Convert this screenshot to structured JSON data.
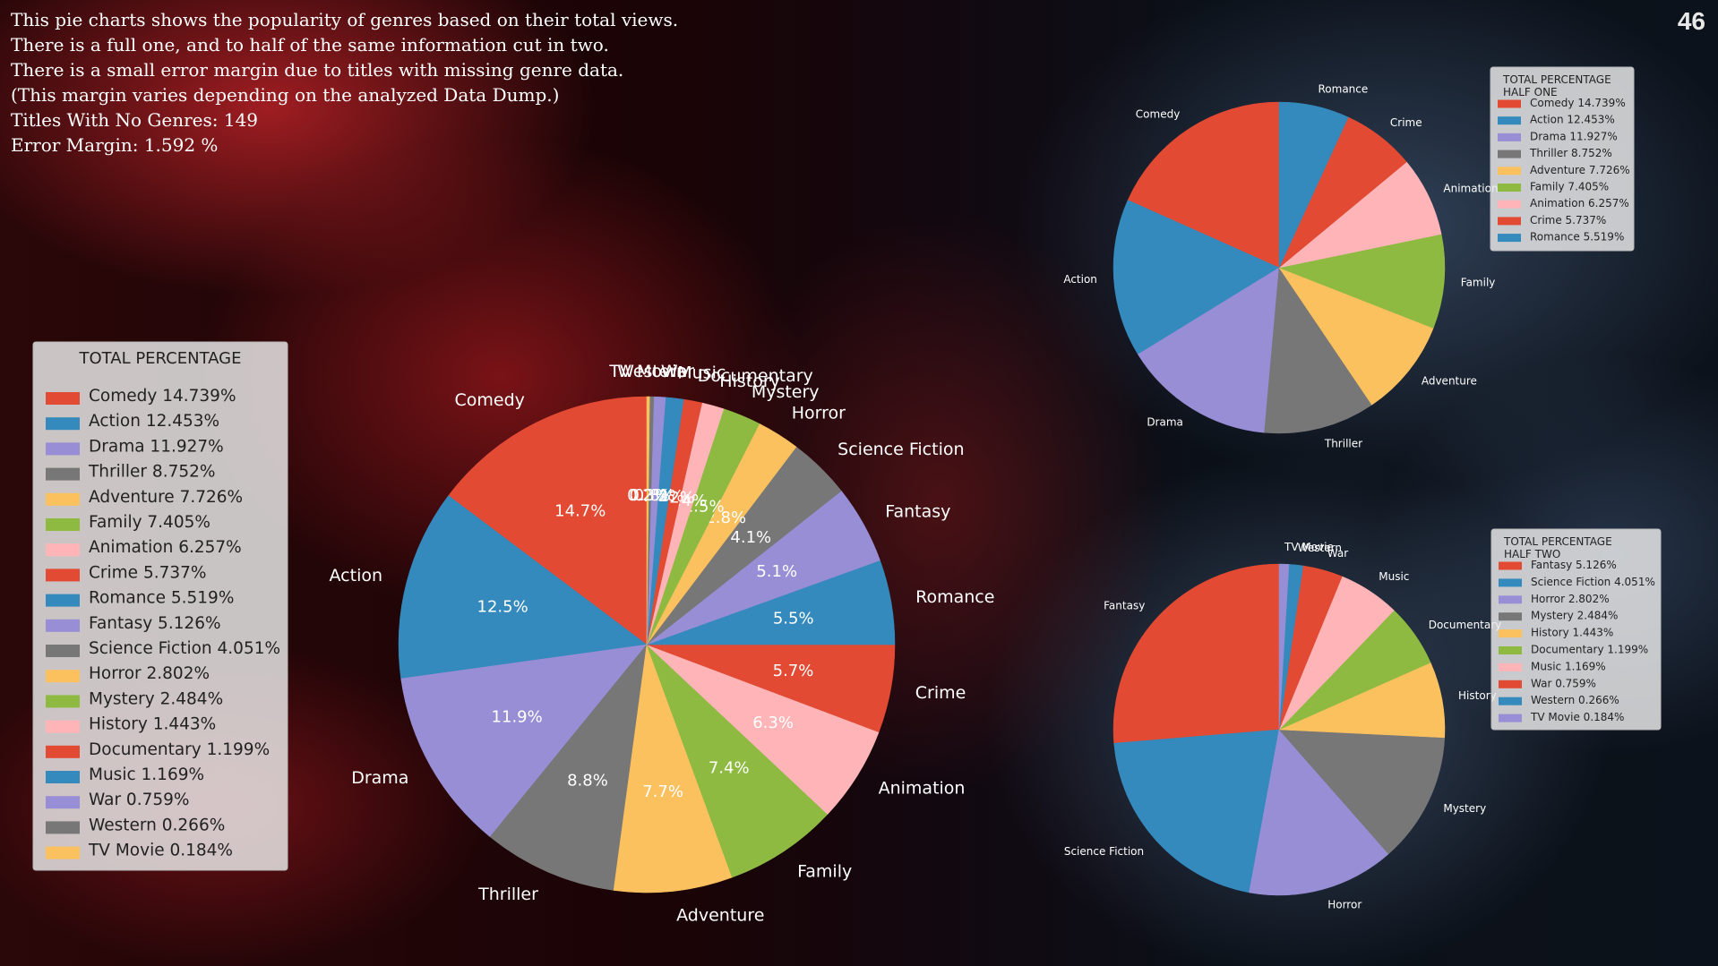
{
  "description_lines": [
    "This pie charts shows the popularity of genres based on their total views.",
    "There is a full one, and to half of the same information cut in two.",
    "There is a small error margin due to titles with missing genre data.",
    "(This margin varies depending on the analyzed Data Dump.)",
    "Titles With No Genres: 149",
    "Error Margin: 1.592 %"
  ],
  "page_number": "46",
  "colors": {
    "red": "#E24A33",
    "blue": "#348ABD",
    "purple": "#988ED5",
    "gray": "#777777",
    "yellow": "#FBC15E",
    "green": "#8EBA42",
    "pink": "#FFB5B8"
  },
  "chart_data": [
    {
      "type": "pie",
      "legend_title": "TOTAL PERCENTAGE",
      "legend_position": "left",
      "start_angle": 90,
      "direction": "counterclockwise",
      "categories": [
        "Comedy",
        "Action",
        "Drama",
        "Thriller",
        "Adventure",
        "Family",
        "Animation",
        "Crime",
        "Romance",
        "Fantasy",
        "Science Fiction",
        "Horror",
        "Mystery",
        "History",
        "Documentary",
        "Music",
        "War",
        "Western",
        "TV Movie"
      ],
      "values": [
        14.739,
        12.453,
        11.927,
        8.752,
        7.726,
        7.405,
        6.257,
        5.737,
        5.519,
        5.126,
        4.051,
        2.802,
        2.484,
        1.443,
        1.199,
        1.169,
        0.759,
        0.266,
        0.184
      ],
      "legend_labels": [
        "Comedy 14.739%",
        "Action 12.453%",
        "Drama 11.927%",
        "Thriller 8.752%",
        "Adventure 7.726%",
        "Family 7.405%",
        "Animation 6.257%",
        "Crime 5.737%",
        "Romance 5.519%",
        "Fantasy 5.126%",
        "Science Fiction 4.051%",
        "Horror 2.802%",
        "Mystery 2.484%",
        "History 1.443%",
        "Documentary 1.199%",
        "Music 1.169%",
        "War 0.759%",
        "Western 0.266%",
        "TV Movie 0.184%"
      ],
      "pct_labels": [
        "14.7%",
        "12.5%",
        "11.9%",
        "8.8%",
        "7.7%",
        "7.4%",
        "6.3%",
        "5.7%",
        "5.5%",
        "5.1%",
        "4.1%",
        "2.8%",
        "2.5%",
        "1.4%",
        "1.2%",
        "1.2%",
        "0.8%",
        "0.3%",
        "0.2%"
      ],
      "colors": [
        "#E24A33",
        "#348ABD",
        "#988ED5",
        "#777777",
        "#FBC15E",
        "#8EBA42",
        "#FFB5B8",
        "#E24A33",
        "#348ABD",
        "#988ED5",
        "#777777",
        "#FBC15E",
        "#8EBA42",
        "#FFB5B8",
        "#E24A33",
        "#348ABD",
        "#988ED5",
        "#777777",
        "#FBC15E"
      ]
    },
    {
      "type": "pie",
      "legend_title": "TOTAL PERCENTAGE\nHALF ONE",
      "legend_position": "top-right",
      "start_angle": 90,
      "direction": "counterclockwise",
      "categories": [
        "Comedy",
        "Action",
        "Drama",
        "Thriller",
        "Adventure",
        "Family",
        "Animation",
        "Crime",
        "Romance"
      ],
      "values": [
        14.739,
        12.453,
        11.927,
        8.752,
        7.726,
        7.405,
        6.257,
        5.737,
        5.519
      ],
      "legend_labels": [
        "Comedy 14.739%",
        "Action 12.453%",
        "Drama 11.927%",
        "Thriller 8.752%",
        "Adventure 7.726%",
        "Family 7.405%",
        "Animation 6.257%",
        "Crime 5.737%",
        "Romance 5.519%"
      ],
      "colors": [
        "#E24A33",
        "#348ABD",
        "#988ED5",
        "#777777",
        "#FBC15E",
        "#8EBA42",
        "#FFB5B8",
        "#E24A33",
        "#348ABD"
      ]
    },
    {
      "type": "pie",
      "legend_title": "TOTAL PERCENTAGE\nHALF TWO",
      "legend_position": "right",
      "start_angle": 90,
      "direction": "counterclockwise",
      "categories": [
        "Fantasy",
        "Science Fiction",
        "Horror",
        "Mystery",
        "History",
        "Documentary",
        "Music",
        "War",
        "Western",
        "TV Movie"
      ],
      "values": [
        5.126,
        4.051,
        2.802,
        2.484,
        1.443,
        1.199,
        1.169,
        0.759,
        0.266,
        0.184
      ],
      "legend_labels": [
        "Fantasy 5.126%",
        "Science Fiction 4.051%",
        "Horror 2.802%",
        "Mystery 2.484%",
        "History 1.443%",
        "Documentary 1.199%",
        "Music 1.169%",
        "War 0.759%",
        "Western 0.266%",
        "TV Movie 0.184%"
      ],
      "colors": [
        "#E24A33",
        "#348ABD",
        "#988ED5",
        "#777777",
        "#FBC15E",
        "#8EBA42",
        "#FFB5B8",
        "#E24A33",
        "#348ABD",
        "#988ED5"
      ]
    }
  ]
}
